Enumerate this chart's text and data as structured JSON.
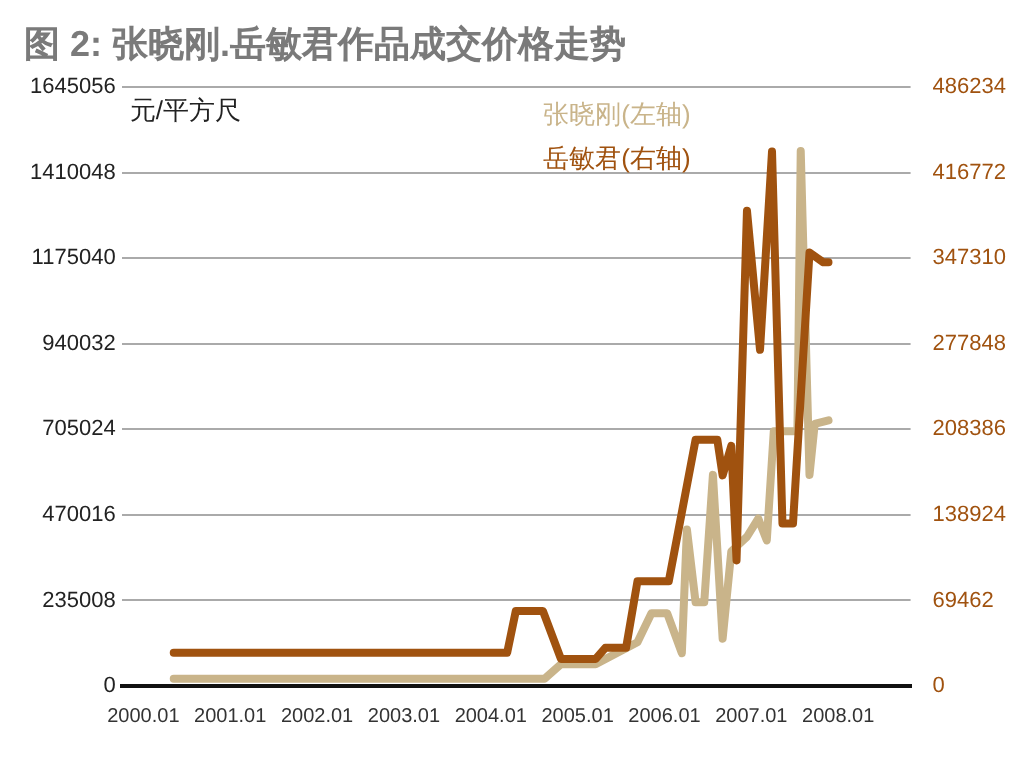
{
  "chart_data": {
    "type": "line",
    "title": "图 2: 张晓刚.岳敏君作品成交价格走势",
    "ylabel": "元/平方尺",
    "xlim": [
      "1999-10",
      "2008-11"
    ],
    "xticks": [
      {
        "value": "2000-01",
        "label": "2000.01"
      },
      {
        "value": "2001-01",
        "label": "2001.01"
      },
      {
        "value": "2002-01",
        "label": "2002.01"
      },
      {
        "value": "2003-01",
        "label": "2003.01"
      },
      {
        "value": "2004-01",
        "label": "2004.01"
      },
      {
        "value": "2005-01",
        "label": "2005.01"
      },
      {
        "value": "2006-01",
        "label": "2006.01"
      },
      {
        "value": "2007-01",
        "label": "2007.01"
      },
      {
        "value": "2008-01",
        "label": "2008.01"
      }
    ],
    "ylim": [
      0,
      1645056
    ],
    "yticks": [
      0,
      235008,
      470016,
      705024,
      940032,
      1175040,
      1410048,
      1645056
    ],
    "y2lim": [
      0,
      486234
    ],
    "y2ticks": [
      0,
      69462,
      138924,
      208386,
      277848,
      347310,
      416772,
      486234
    ],
    "grid": "y",
    "legend": "top right",
    "marker": "none",
    "line_style": "solid",
    "series": [
      {
        "name": "张晓刚(左轴)",
        "color": "#c9b48a",
        "x": [
          "2000-05-07",
          "2004-08-14",
          "2004-10-22",
          "2005-03-16",
          "2005-09-09",
          "2005-11-07",
          "2006-01-12",
          "2006-03-13",
          "2006-04-04",
          "2006-05-10",
          "2006-06-16",
          "2006-07-22",
          "2006-09-02",
          "2006-10-08",
          "2006-12-13",
          "2007-01-30",
          "2007-03-05",
          "2007-04-04",
          "2007-07-12",
          "2007-07-26",
          "2007-09-02",
          "2007-09-24",
          "2007-11-21"
        ],
        "values": [
          20000,
          20000,
          60000,
          60000,
          120000,
          200000,
          200000,
          90000,
          430000,
          230000,
          230000,
          580000,
          130000,
          370000,
          410000,
          460000,
          400000,
          700000,
          700000,
          1470000,
          580000,
          720000,
          730000
        ]
      },
      {
        "name": "岳敏君(右轴)",
        "color": "#a0520f",
        "axis": "y2",
        "x": [
          "2000-05-07",
          "2004-03-09",
          "2004-04-15",
          "2004-08-07",
          "2004-10-22",
          "2005-03-16",
          "2005-04-26",
          "2005-07-22",
          "2005-09-09",
          "2006-01-19",
          "2006-05-10",
          "2006-08-10",
          "2006-09-02",
          "2006-10-08",
          "2006-10-30",
          "2006-12-13",
          "2007-02-07",
          "2007-03-27",
          "2007-05-10",
          "2007-06-24",
          "2007-09-02",
          "2007-10-30",
          "2007-11-21"
        ],
        "values": [
          27000,
          27000,
          61000,
          61000,
          22000,
          22000,
          31000,
          31000,
          85000,
          85000,
          200000,
          200000,
          171000,
          195000,
          102000,
          386000,
          273000,
          434000,
          132000,
          132000,
          352000,
          344000,
          344000
        ]
      }
    ]
  }
}
